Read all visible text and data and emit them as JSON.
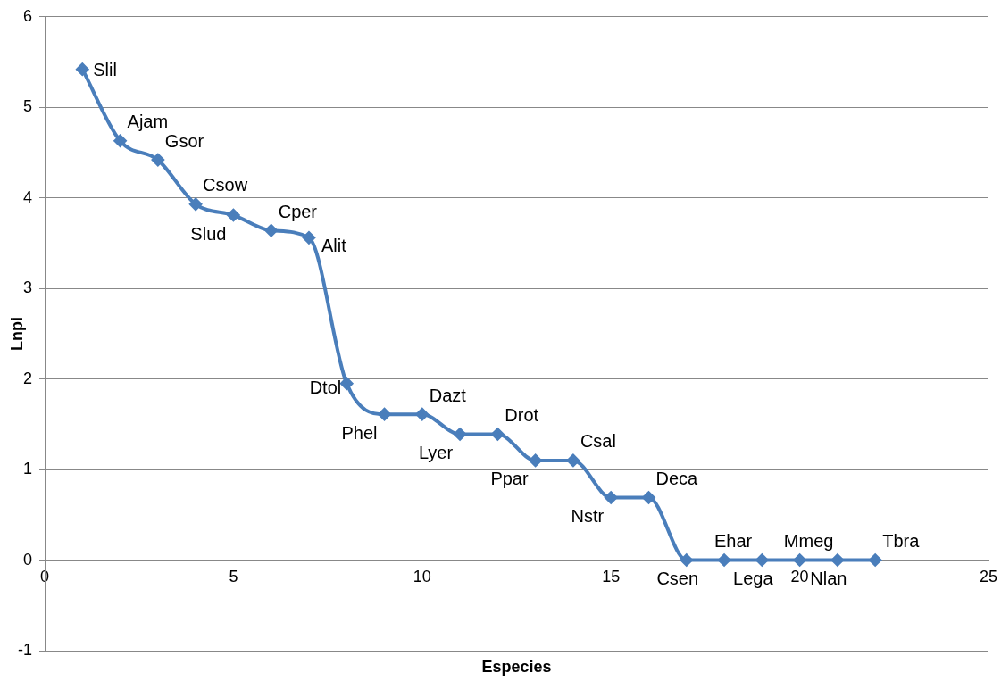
{
  "chart_data": {
    "type": "line",
    "xlabel": "Especies",
    "ylabel": "Lnpi",
    "x": [
      1,
      2,
      3,
      4,
      5,
      6,
      7,
      8,
      9,
      10,
      11,
      12,
      13,
      14,
      15,
      16,
      17,
      18,
      19,
      20,
      21,
      22
    ],
    "series": [
      {
        "color": "#4a7ebb",
        "values": [
          5.42,
          4.63,
          4.42,
          3.93,
          3.81,
          3.64,
          3.56,
          1.95,
          1.61,
          1.61,
          1.39,
          1.39,
          1.1,
          1.1,
          0.69,
          0.69,
          0,
          0,
          0,
          0,
          0,
          0
        ]
      }
    ],
    "xlim": [
      0,
      25
    ],
    "xticks": [
      0,
      5,
      10,
      15,
      20,
      25
    ],
    "ylim": [
      -1,
      6
    ],
    "yticks": [
      -1,
      0,
      1,
      2,
      3,
      4,
      5,
      6
    ],
    "grid": "y",
    "legend": false,
    "marker": "diamond",
    "line_style": "solid",
    "annotations": [
      {
        "text": "Slil",
        "x": 1,
        "y": 5.42
      },
      {
        "text": "Ajam",
        "x": 2,
        "y": 4.63
      },
      {
        "text": "Gsor",
        "x": 3,
        "y": 4.42
      },
      {
        "text": "Csow",
        "x": 4,
        "y": 3.93
      },
      {
        "text": "Slud",
        "x": 5,
        "y": 3.81
      },
      {
        "text": "Cper",
        "x": 6,
        "y": 3.64
      },
      {
        "text": "Alit",
        "x": 7,
        "y": 3.56
      },
      {
        "text": "Dtol",
        "x": 8,
        "y": 1.95
      },
      {
        "text": "Phel",
        "x": 9,
        "y": 1.61
      },
      {
        "text": "Dazt",
        "x": 10,
        "y": 1.61
      },
      {
        "text": "Lyer",
        "x": 11,
        "y": 1.39
      },
      {
        "text": "Drot",
        "x": 12,
        "y": 1.39
      },
      {
        "text": "Ppar",
        "x": 13,
        "y": 1.1
      },
      {
        "text": "Csal",
        "x": 14,
        "y": 1.1
      },
      {
        "text": "Nstr",
        "x": 15,
        "y": 0.69
      },
      {
        "text": "Deca",
        "x": 16,
        "y": 0.69
      },
      {
        "text": "Csen",
        "x": 17,
        "y": 0
      },
      {
        "text": "Ehar",
        "x": 18,
        "y": 0
      },
      {
        "text": "Lega",
        "x": 19,
        "y": 0
      },
      {
        "text": "Mmeg",
        "x": 20,
        "y": 0
      },
      {
        "text": "Nlan",
        "x": 21,
        "y": 0
      },
      {
        "text": "Tbra",
        "x": 22,
        "y": 0
      }
    ]
  }
}
